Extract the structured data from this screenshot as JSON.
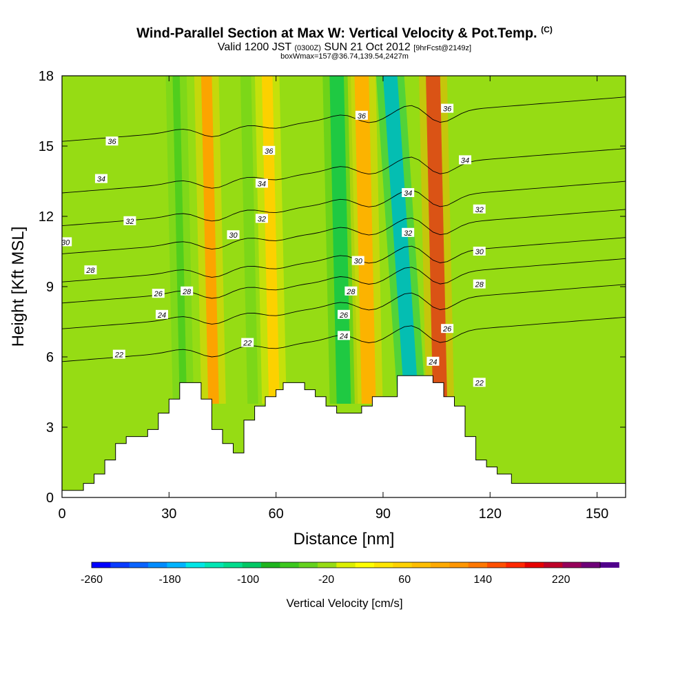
{
  "chart_data": {
    "type": "heatmap",
    "title": "Wind-Parallel Section at Max W: Vertical Velocity & Pot.Temp.",
    "title_mark": "(C)",
    "subtitle_main": "Valid 1200 JST",
    "subtitle_z": "(0300Z)",
    "subtitle_date": "SUN 21 Oct 2012",
    "subtitle_fcst": "[9hrFcst@2149z]",
    "subtitle2": "boxWmax=157@36.74,139.54,2427m",
    "xlabel": "Distance [nm]",
    "ylabel": "Height [Kft MSL]",
    "xlim": [
      0,
      158
    ],
    "ylim": [
      0,
      18
    ],
    "x_ticks": [
      "0",
      "30",
      "60",
      "90",
      "120",
      "150"
    ],
    "y_ticks": [
      "0",
      "3",
      "6",
      "9",
      "12",
      "15",
      "18"
    ],
    "colorbar": {
      "title": "Vertical Velocity [cm/s]",
      "min": -260,
      "max": 260,
      "step": 20,
      "tick_labels": [
        "-260",
        "-180",
        "-100",
        "-20",
        "60",
        "140",
        "220"
      ],
      "colors": [
        "#0000ff",
        "#0a3cff",
        "#0a64ff",
        "#008cff",
        "#00b4ff",
        "#00e6e6",
        "#00e6b4",
        "#00dc8c",
        "#00c864",
        "#1eb41e",
        "#3cc81e",
        "#64d21e",
        "#96dc14",
        "#dcf000",
        "#ffff00",
        "#ffe600",
        "#ffd200",
        "#ffbe00",
        "#ffaa00",
        "#ff9600",
        "#ff7800",
        "#ff5000",
        "#ff2800",
        "#e60000",
        "#be0028",
        "#96005a",
        "#6e0078",
        "#50008c"
      ]
    },
    "terrain": [
      [
        0,
        0.3
      ],
      [
        6,
        0.3
      ],
      [
        6,
        0.6
      ],
      [
        9,
        0.6
      ],
      [
        9,
        1.0
      ],
      [
        12,
        1.0
      ],
      [
        12,
        1.6
      ],
      [
        15,
        1.6
      ],
      [
        15,
        2.3
      ],
      [
        18,
        2.3
      ],
      [
        18,
        2.6
      ],
      [
        24,
        2.6
      ],
      [
        24,
        2.9
      ],
      [
        27,
        2.9
      ],
      [
        27,
        3.6
      ],
      [
        30,
        3.6
      ],
      [
        30,
        4.2
      ],
      [
        33,
        4.2
      ],
      [
        33,
        4.9
      ],
      [
        39,
        4.9
      ],
      [
        39,
        4.2
      ],
      [
        42,
        4.2
      ],
      [
        42,
        2.9
      ],
      [
        45,
        2.9
      ],
      [
        45,
        2.3
      ],
      [
        48,
        2.3
      ],
      [
        48,
        1.9
      ],
      [
        51,
        1.9
      ],
      [
        51,
        3.3
      ],
      [
        54,
        3.3
      ],
      [
        54,
        3.9
      ],
      [
        57,
        3.9
      ],
      [
        57,
        4.3
      ],
      [
        60,
        4.3
      ],
      [
        60,
        4.6
      ],
      [
        62,
        4.6
      ],
      [
        62,
        4.9
      ],
      [
        68,
        4.9
      ],
      [
        68,
        4.6
      ],
      [
        71,
        4.6
      ],
      [
        71,
        4.3
      ],
      [
        74,
        4.3
      ],
      [
        74,
        3.9
      ],
      [
        77,
        3.9
      ],
      [
        77,
        3.6
      ],
      [
        84,
        3.6
      ],
      [
        84,
        3.9
      ],
      [
        87,
        3.9
      ],
      [
        87,
        4.3
      ],
      [
        94,
        4.3
      ],
      [
        94,
        5.2
      ],
      [
        104,
        5.2
      ],
      [
        104,
        4.9
      ],
      [
        107,
        4.9
      ],
      [
        107,
        4.3
      ],
      [
        110,
        4.3
      ],
      [
        110,
        3.9
      ],
      [
        113,
        3.9
      ],
      [
        113,
        2.6
      ],
      [
        116,
        2.6
      ],
      [
        116,
        1.6
      ],
      [
        119,
        1.6
      ],
      [
        119,
        1.3
      ],
      [
        122,
        1.3
      ],
      [
        122,
        1.0
      ],
      [
        126,
        1.0
      ],
      [
        126,
        0.6
      ],
      [
        158,
        0.6
      ]
    ],
    "w_bands": [
      {
        "x0": 41,
        "x1": 44,
        "value": 140
      },
      {
        "x0": 33,
        "x1": 35,
        "value": -60
      },
      {
        "x0": 52,
        "x1": 55,
        "value": -40
      },
      {
        "x0": 58,
        "x1": 61,
        "value": 80
      },
      {
        "x0": 77,
        "x1": 81,
        "value": -100
      },
      {
        "x0": 84,
        "x1": 88,
        "value": 120
      },
      {
        "x0": 96,
        "x1": 100,
        "value": -180
      },
      {
        "x0": 104,
        "x1": 108,
        "value": 220
      }
    ],
    "theta_contours": [
      {
        "level": "22",
        "y": 5.8
      },
      {
        "level": "24",
        "y": 7.2
      },
      {
        "level": "26",
        "y": 8.3
      },
      {
        "level": "28",
        "y": 9.2
      },
      {
        "level": "30",
        "y": 10.4
      },
      {
        "level": "32",
        "y": 11.6
      },
      {
        "level": "34",
        "y": 13.0
      },
      {
        "level": "36",
        "y": 15.2
      }
    ],
    "contour_labels": [
      {
        "text": "30",
        "x": 1,
        "y": 10.9
      },
      {
        "text": "28",
        "x": 8,
        "y": 9.7
      },
      {
        "text": "32",
        "x": 19,
        "y": 11.8
      },
      {
        "text": "34",
        "x": 11,
        "y": 13.6
      },
      {
        "text": "36",
        "x": 14,
        "y": 15.2
      },
      {
        "text": "22",
        "x": 16,
        "y": 6.1
      },
      {
        "text": "24",
        "x": 28,
        "y": 7.8
      },
      {
        "text": "26",
        "x": 27,
        "y": 8.7
      },
      {
        "text": "28",
        "x": 35,
        "y": 8.8
      },
      {
        "text": "30",
        "x": 48,
        "y": 11.2
      },
      {
        "text": "32",
        "x": 56,
        "y": 11.9
      },
      {
        "text": "34",
        "x": 56,
        "y": 13.4
      },
      {
        "text": "36",
        "x": 58,
        "y": 14.8
      },
      {
        "text": "22",
        "x": 52,
        "y": 6.6
      },
      {
        "text": "36",
        "x": 84,
        "y": 16.3
      },
      {
        "text": "30",
        "x": 83,
        "y": 10.1
      },
      {
        "text": "28",
        "x": 81,
        "y": 8.8
      },
      {
        "text": "26",
        "x": 79,
        "y": 7.8
      },
      {
        "text": "24",
        "x": 79,
        "y": 6.9
      },
      {
        "text": "34",
        "x": 97,
        "y": 13.0
      },
      {
        "text": "32",
        "x": 97,
        "y": 11.3
      },
      {
        "text": "36",
        "x": 108,
        "y": 16.6
      },
      {
        "text": "34",
        "x": 113,
        "y": 14.4
      },
      {
        "text": "32",
        "x": 117,
        "y": 12.3
      },
      {
        "text": "30",
        "x": 117,
        "y": 10.5
      },
      {
        "text": "28",
        "x": 117,
        "y": 9.1
      },
      {
        "text": "26",
        "x": 108,
        "y": 7.2
      },
      {
        "text": "24",
        "x": 104,
        "y": 5.8
      },
      {
        "text": "22",
        "x": 117,
        "y": 4.9
      }
    ]
  }
}
